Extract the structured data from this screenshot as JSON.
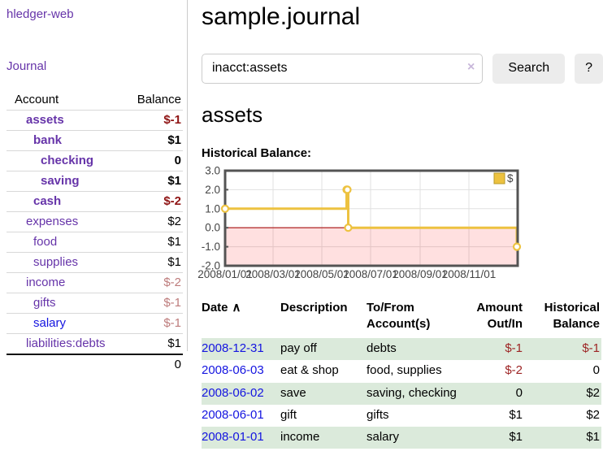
{
  "colors": {
    "link_purple": "#6634a9",
    "link_blue": "#1414e0",
    "neg_strong": "#8f1414",
    "neg_soft": "#bd7b7b",
    "neg_table": "#9d2424",
    "row_stripe_green": "#dbeadb",
    "series_gold": "#edc240",
    "zero_line_red": "#aa1111"
  },
  "sidebar": {
    "app_title": "hledger-web",
    "journal_link": "Journal",
    "accounts_table": {
      "headers": {
        "account": "Account",
        "balance": "Balance"
      },
      "rows": [
        {
          "name": "assets",
          "depth": 1,
          "bold": true,
          "balance": "$-1",
          "balance_style": "neg-strong"
        },
        {
          "name": "bank",
          "depth": 2,
          "bold": true,
          "balance": "$1",
          "balance_style": "pos"
        },
        {
          "name": "checking",
          "depth": 3,
          "bold": true,
          "balance": "0",
          "balance_style": "pos"
        },
        {
          "name": "saving",
          "depth": 3,
          "bold": true,
          "balance": "$1",
          "balance_style": "pos"
        },
        {
          "name": "cash",
          "depth": 2,
          "bold": true,
          "balance": "$-2",
          "balance_style": "neg-strong"
        },
        {
          "name": "expenses",
          "depth": 1,
          "bold": false,
          "balance": "$2",
          "balance_style": "pos"
        },
        {
          "name": "food",
          "depth": 2,
          "bold": false,
          "balance": "$1",
          "balance_style": "pos"
        },
        {
          "name": "supplies",
          "depth": 2,
          "bold": false,
          "balance": "$1",
          "balance_style": "pos"
        },
        {
          "name": "income",
          "depth": 1,
          "bold": false,
          "balance": "$-2",
          "balance_style": "neg-soft"
        },
        {
          "name": "gifts",
          "depth": 2,
          "bold": false,
          "balance": "$-1",
          "balance_style": "neg-soft"
        },
        {
          "name": "salary",
          "depth": 2,
          "bold": false,
          "balance": "$-1",
          "balance_style": "neg-soft",
          "link_color": "blue"
        },
        {
          "name": "liabilities:debts",
          "depth": 1,
          "bold": false,
          "balance": "$1",
          "balance_style": "pos"
        }
      ],
      "total": "0"
    }
  },
  "header": {
    "title": "sample.journal"
  },
  "search": {
    "value": "inacct:assets",
    "clear_icon": "×",
    "button_label": "Search",
    "help_label": "?"
  },
  "account_page": {
    "title": "assets",
    "chart_label": "Historical Balance:"
  },
  "chart_data": {
    "type": "line",
    "step": true,
    "title": "Historical Balance",
    "series": [
      {
        "name": "$",
        "color": "#edc240",
        "points": [
          [
            "2008-01-01",
            1
          ],
          [
            "2008-06-01",
            2
          ],
          [
            "2008-06-02",
            2
          ],
          [
            "2008-06-03",
            0
          ],
          [
            "2008-12-31",
            -1
          ]
        ]
      }
    ],
    "x_range": [
      "2008-01-01",
      "2009-01-01"
    ],
    "ylim": [
      -2,
      3
    ],
    "yticks": [
      3.0,
      2.0,
      1.0,
      0.0,
      -1.0,
      -2.0
    ],
    "xticks": [
      {
        "date": "2008-01-01",
        "label": "2008/01/01"
      },
      {
        "date": "2008-03-01",
        "label": "2008/03/01"
      },
      {
        "date": "2008-05-01",
        "label": "2008/05/01"
      },
      {
        "date": "2008-07-01",
        "label": "2008/07/01"
      },
      {
        "date": "2008-09-01",
        "label": "2008/09/01"
      },
      {
        "date": "2008-11-01",
        "label": "2008/11/01"
      }
    ],
    "legend_position": "top-right",
    "negative_region_shaded": true,
    "grid": true
  },
  "register_table": {
    "columns": {
      "date": "Date",
      "sort_icon": "∧",
      "description": "Description",
      "accounts": "To/From Account(s)",
      "amount": "Amount Out/In",
      "balance": "Historical Balance"
    },
    "rows": [
      {
        "date": "2008-12-31",
        "description": "pay off",
        "accounts": "debts",
        "amount": "$-1",
        "amount_neg": true,
        "balance": "$-1",
        "balance_neg": true
      },
      {
        "date": "2008-06-03",
        "description": "eat & shop",
        "accounts": "food, supplies",
        "amount": "$-2",
        "amount_neg": true,
        "balance": "0",
        "balance_neg": false
      },
      {
        "date": "2008-06-02",
        "description": "save",
        "accounts": "saving, checking",
        "amount": "0",
        "amount_neg": false,
        "balance": "$2",
        "balance_neg": false
      },
      {
        "date": "2008-06-01",
        "description": "gift",
        "accounts": "gifts",
        "amount": "$1",
        "amount_neg": false,
        "balance": "$2",
        "balance_neg": false
      },
      {
        "date": "2008-01-01",
        "description": "income",
        "accounts": "salary",
        "amount": "$1",
        "amount_neg": false,
        "balance": "$1",
        "balance_neg": false
      }
    ]
  }
}
